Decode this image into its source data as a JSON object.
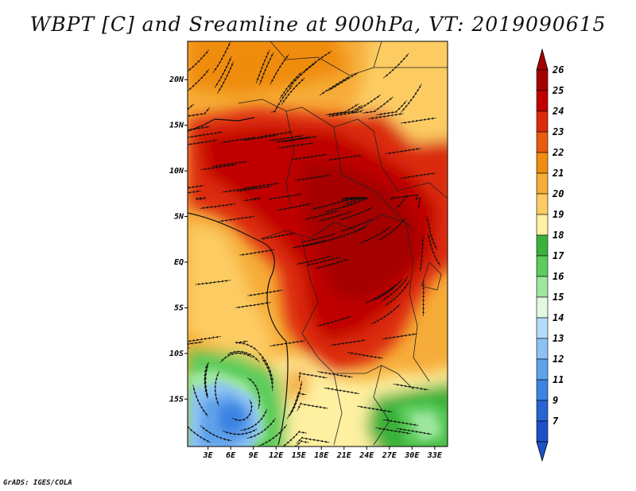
{
  "title": "WBPT [C] and Sreamline at 900hPa, VT: 2019090615",
  "credit": "GrADS: IGES/COLA",
  "lat_ticks": [
    {
      "label": "20N",
      "lat": 20
    },
    {
      "label": "15N",
      "lat": 15
    },
    {
      "label": "10N",
      "lat": 10
    },
    {
      "label": "5N",
      "lat": 5
    },
    {
      "label": "EQ",
      "lat": 0
    },
    {
      "label": "5S",
      "lat": -5
    },
    {
      "label": "10S",
      "lat": -10
    },
    {
      "label": "15S",
      "lat": -15
    }
  ],
  "lon_ticks": [
    {
      "label": "3E",
      "lon": 3
    },
    {
      "label": "6E",
      "lon": 6
    },
    {
      "label": "9E",
      "lon": 9
    },
    {
      "label": "12E",
      "lon": 12
    },
    {
      "label": "15E",
      "lon": 15
    },
    {
      "label": "18E",
      "lon": 18
    },
    {
      "label": "21E",
      "lon": 21
    },
    {
      "label": "24E",
      "lon": 24
    },
    {
      "label": "27E",
      "lon": 27
    },
    {
      "label": "30E",
      "lon": 30
    },
    {
      "label": "33E",
      "lon": 33
    }
  ],
  "map_extent": {
    "lon_min": 0.3,
    "lon_max": 34.7,
    "lat_min": -20.2,
    "lat_max": 24.2
  },
  "colorbar": {
    "levels": [
      {
        "label": "26",
        "color": "#a50000"
      },
      {
        "label": "25",
        "color": "#c00000"
      },
      {
        "label": "24",
        "color": "#dc2a0a"
      },
      {
        "label": "23",
        "color": "#e85a0e"
      },
      {
        "label": "22",
        "color": "#f08c10"
      },
      {
        "label": "21",
        "color": "#f6ac38"
      },
      {
        "label": "20",
        "color": "#fccc64"
      },
      {
        "label": "19",
        "color": "#fef0a0"
      },
      {
        "label": "18",
        "color": "#3ab23a"
      },
      {
        "label": "17",
        "color": "#5ccc5c"
      },
      {
        "label": "16",
        "color": "#9ee69e"
      },
      {
        "label": "15",
        "color": "#e2f8e2"
      },
      {
        "label": "14",
        "color": "#b4dcf8"
      },
      {
        "label": "13",
        "color": "#8cc2f2"
      },
      {
        "label": "12",
        "color": "#5ea2ea"
      },
      {
        "label": "11",
        "color": "#3c84e2"
      },
      {
        "label": "9",
        "color": "#2864d2"
      },
      {
        "label": "7",
        "color": "#1e50c8"
      }
    ],
    "top_color": "#a50000",
    "bottom_color": "#1e50c8"
  }
}
